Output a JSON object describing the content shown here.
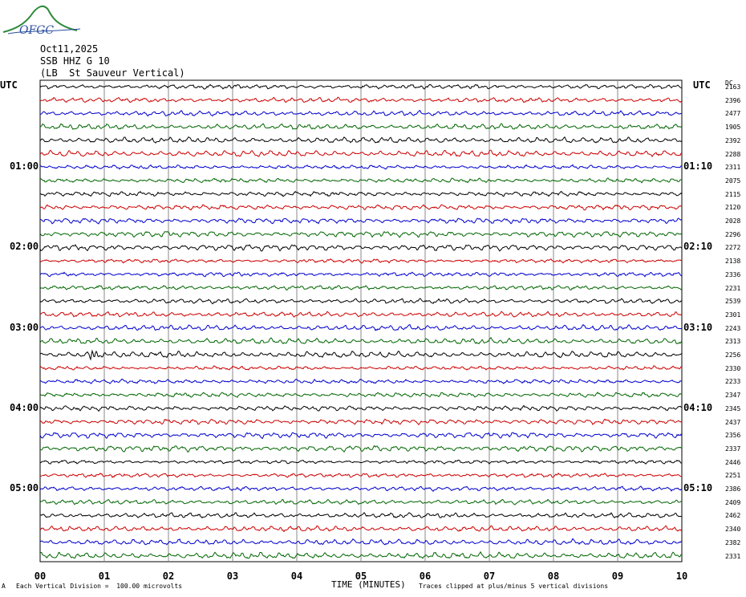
{
  "logo": {
    "text": "OFGC",
    "colors": {
      "swoosh": "#2e8b3a",
      "text": "#2a4f9e"
    }
  },
  "header": {
    "date": "Oct11,2025",
    "station": "SSB HHZ G 10",
    "location": "(LB  St Sauveur Vertical)"
  },
  "labels": {
    "utc_left": "UTC",
    "utc_right": "UTC",
    "dc": "DC"
  },
  "footer": {
    "scale": "Each Vertical Division =  100.00 microvolts",
    "clip": "Traces clipped at plus/minus 5 vertical divisions",
    "x_title": "TIME (MINUTES)",
    "corner": "A"
  },
  "chart_data": {
    "type": "line",
    "title": "",
    "xlabel": "TIME (MINUTES)",
    "ylabel": "",
    "xlim": [
      0,
      10
    ],
    "x_ticks": [
      "00",
      "01",
      "02",
      "03",
      "04",
      "05",
      "06",
      "07",
      "08",
      "09",
      "10"
    ],
    "grid": true,
    "trace_colors": [
      "#000000",
      "#cc0000",
      "#0000cc",
      "#006600"
    ],
    "left_time_labels": [
      {
        "row": 6,
        "text": "01:00"
      },
      {
        "row": 12,
        "text": "02:00"
      },
      {
        "row": 18,
        "text": "03:00"
      },
      {
        "row": 24,
        "text": "04:00"
      },
      {
        "row": 30,
        "text": "05:00"
      }
    ],
    "right_time_labels": [
      {
        "row": 6,
        "text": "01:10"
      },
      {
        "row": 12,
        "text": "02:10"
      },
      {
        "row": 18,
        "text": "03:10"
      },
      {
        "row": 24,
        "text": "04:10"
      },
      {
        "row": 30,
        "text": "05:10"
      }
    ],
    "dc_offsets": [
      "2163",
      "2396",
      "2477",
      "1905",
      "2392",
      "2288",
      "2311",
      "2075",
      "2115",
      "2120",
      "2028",
      "2296",
      "2272",
      "2138",
      "2336",
      "2231",
      "2539",
      "2301",
      "2243",
      "2313",
      "2256",
      "2330",
      "2233",
      "2347",
      "2345",
      "2437",
      "2356",
      "2337",
      "2446",
      "2251",
      "2386",
      "2409",
      "2462",
      "2340",
      "2382",
      "2331"
    ],
    "events": [
      {
        "row": 20,
        "minute": 0.77
      }
    ]
  }
}
